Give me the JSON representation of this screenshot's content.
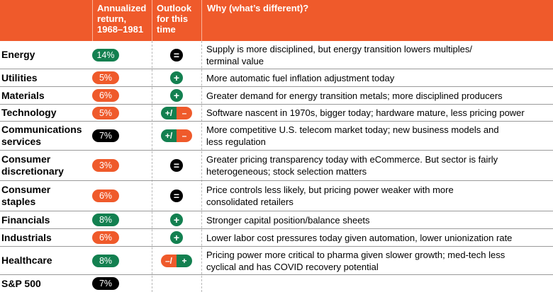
{
  "header": {
    "col_return": "Annualized\nreturn,\n1968–1981",
    "col_outlook": "Outlook\nfor this\ntime",
    "col_why": "Why (what’s different)?"
  },
  "colors": {
    "green": "#138050",
    "orange": "#ef5a2b",
    "black": "#000000"
  },
  "rows": [
    {
      "sector": "Energy",
      "ret": "14%",
      "ret_color": "green",
      "outlook": "=",
      "outlook_left": "",
      "outlook_right": "",
      "why": "Supply is more disciplined, but energy transition lowers multiples/\nterminal value"
    },
    {
      "sector": "Utilities",
      "ret": "5%",
      "ret_color": "orange",
      "outlook": "+",
      "outlook_left": "",
      "outlook_right": "",
      "why": "More automatic fuel inflation adjustment today"
    },
    {
      "sector": "Materials",
      "ret": "6%",
      "ret_color": "orange",
      "outlook": "+",
      "outlook_left": "",
      "outlook_right": "",
      "why": "Greater demand for energy transition metals; more disciplined producers"
    },
    {
      "sector": "Technology",
      "ret": "5%",
      "ret_color": "orange",
      "outlook": "",
      "outlook_left": "+/",
      "outlook_right": "–",
      "why": "Software nascent in 1970s, bigger today; hardware mature, less pricing power"
    },
    {
      "sector": "Communications\nservices",
      "ret": "7%",
      "ret_color": "black",
      "outlook": "",
      "outlook_left": "+/",
      "outlook_right": "–",
      "why": "More competitive U.S. telecom market today; new business models and\nless regulation"
    },
    {
      "sector": "Consumer\ndiscretionary",
      "ret": "3%",
      "ret_color": "orange",
      "outlook": "=",
      "outlook_left": "",
      "outlook_right": "",
      "why": "Greater pricing transparency today with eCommerce. But sector is fairly\nheterogeneous; stock selection matters"
    },
    {
      "sector": "Consumer\nstaples",
      "ret": "6%",
      "ret_color": "orange",
      "outlook": "=",
      "outlook_left": "",
      "outlook_right": "",
      "why": "Price controls less likely, but pricing power weaker with more\nconsolidated retailers"
    },
    {
      "sector": "Financials",
      "ret": "8%",
      "ret_color": "green",
      "outlook": "+",
      "outlook_left": "",
      "outlook_right": "",
      "why": "Stronger capital position/balance sheets"
    },
    {
      "sector": "Industrials",
      "ret": "6%",
      "ret_color": "orange",
      "outlook": "+",
      "outlook_left": "",
      "outlook_right": "",
      "why": "Lower labor cost pressures today given automation, lower unionization rate"
    },
    {
      "sector": "Healthcare",
      "ret": "8%",
      "ret_color": "green",
      "outlook": "",
      "outlook_left": "–/",
      "outlook_right": "+",
      "why": "Pricing power more critical to pharma given slower growth; med-tech less\ncyclical and has COVID recovery potential"
    },
    {
      "sector": "S&P 500",
      "ret": "7%",
      "ret_color": "black",
      "outlook": "",
      "outlook_left": "",
      "outlook_right": "",
      "why": ""
    }
  ]
}
